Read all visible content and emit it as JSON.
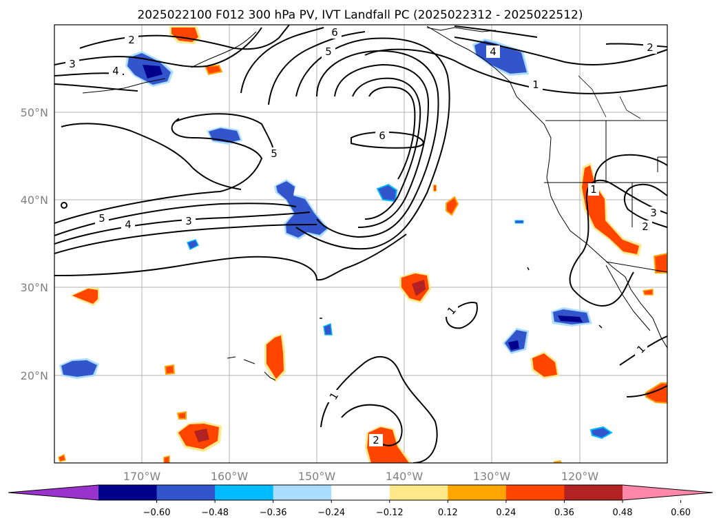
{
  "title": "2025022100 F012 300 hPa PV, IVT Landfall PC (2025022312 - 2025022512)",
  "map": {
    "lon_ticks": [
      "170°W",
      "160°W",
      "150°W",
      "140°W",
      "130°W",
      "120°W"
    ],
    "lat_ticks": [
      "50°N",
      "40°N",
      "30°N",
      "20°N"
    ],
    "extent": {
      "lon": [
        -180,
        -110
      ],
      "lat": [
        10,
        60
      ]
    },
    "gridlines": true
  },
  "contour_labels": [
    "2",
    "3",
    "4",
    "5",
    "6",
    "5",
    "6",
    "4",
    "2",
    "1",
    "3",
    "5",
    "4",
    "3",
    "1",
    "2",
    "3",
    "1",
    "1",
    "2",
    "1"
  ],
  "colorbar": {
    "colors": [
      "#9933cc",
      "#00008b",
      "#3355cc",
      "#00bbff",
      "#aaddff",
      "#ffffff",
      "#ffe88a",
      "#ffa500",
      "#ff4500",
      "#b22222",
      "#ff88aa"
    ],
    "tick_labels": [
      "−0.60",
      "−0.48",
      "−0.36",
      "−0.24",
      "−0.12",
      "0.12",
      "0.24",
      "0.36",
      "0.48",
      "0.60"
    ],
    "extend": "both"
  },
  "colors": {
    "positive": "#ff4500",
    "positive_strong": "#b22222",
    "positive_edge": "#ffa500",
    "positive_halo": "#ffe88a",
    "negative": "#3355cc",
    "negative_strong": "#00008b",
    "negative_edge": "#00bbff",
    "negative_halo": "#aaddff"
  }
}
